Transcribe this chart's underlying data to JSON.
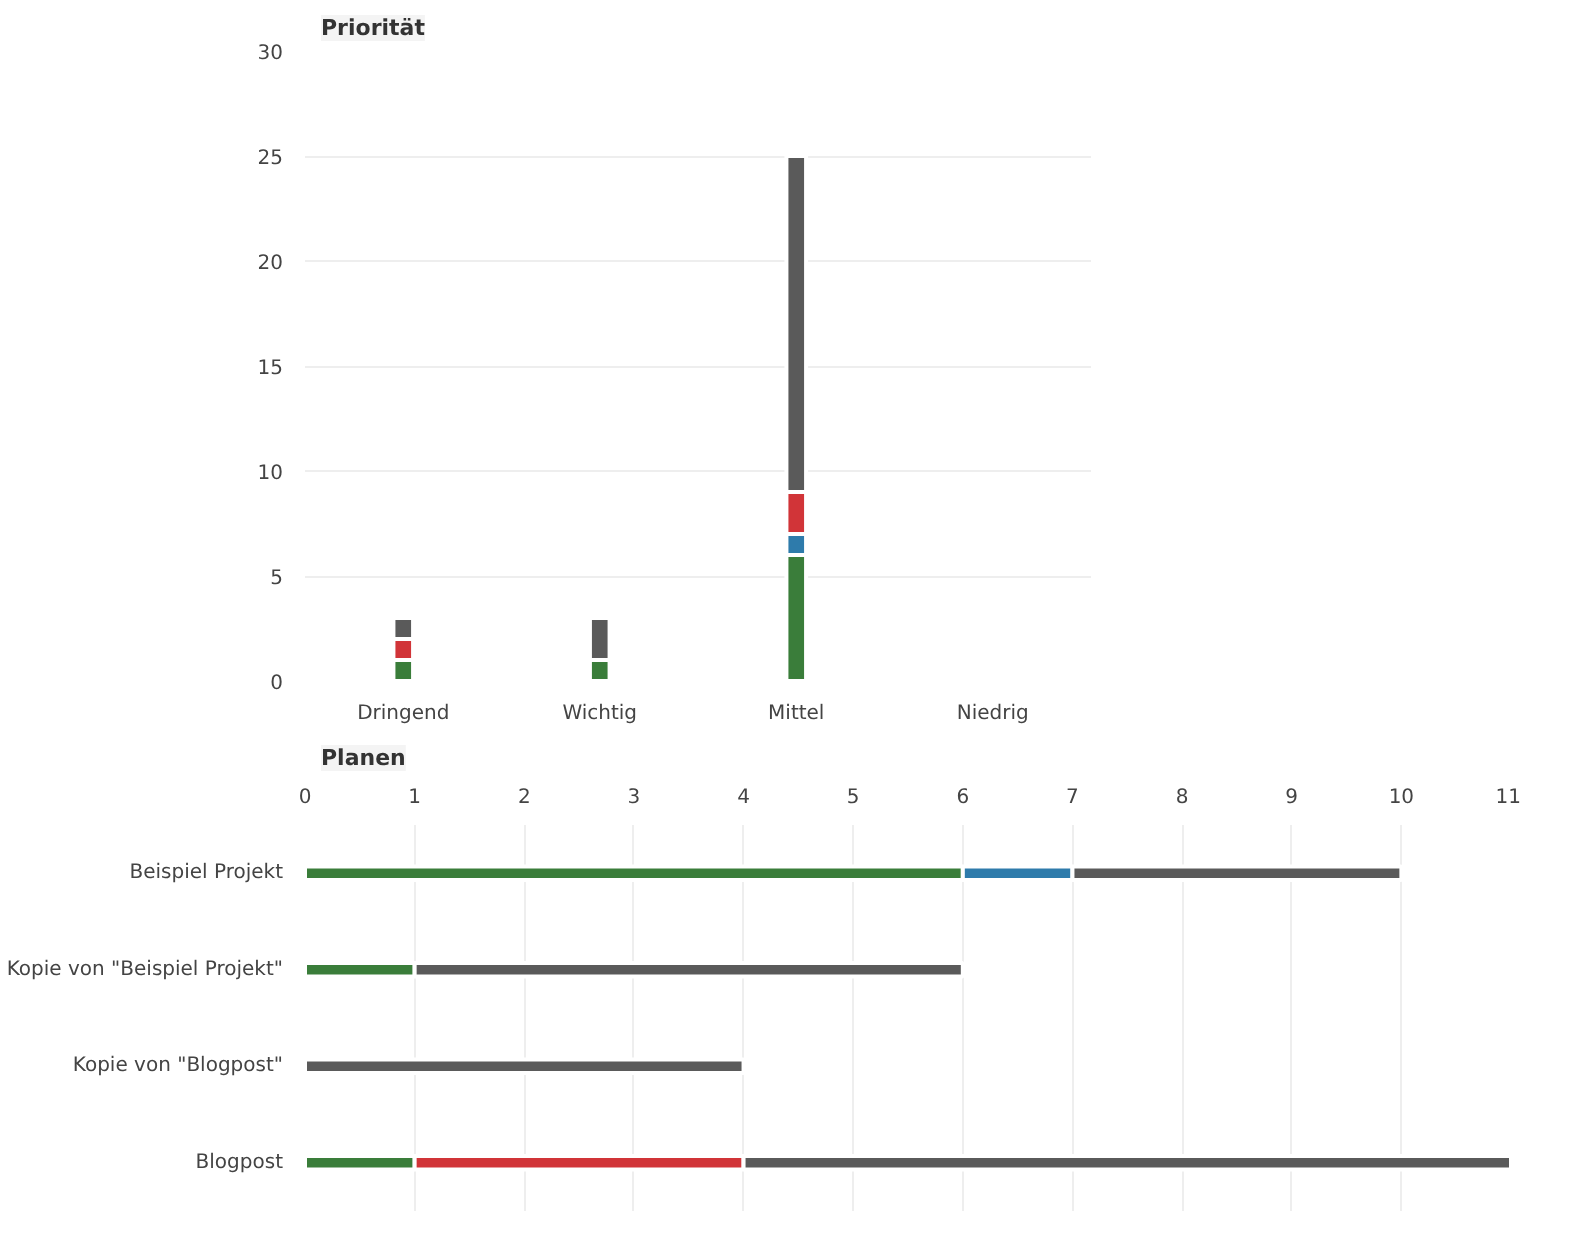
{
  "chart_data": [
    {
      "type": "bar",
      "title": "Priorität",
      "stacked": true,
      "categories": [
        "Dringend",
        "Wichtig",
        "Mittel",
        "Niedrig"
      ],
      "ylim": [
        0,
        30
      ],
      "yticks": [
        0,
        5,
        10,
        15,
        20,
        25,
        30
      ],
      "grid": "y",
      "series": [
        {
          "color": "#3a7d3a",
          "values": [
            1,
            1,
            6,
            0
          ]
        },
        {
          "color": "#2e7bab",
          "values": [
            0,
            0,
            1,
            0
          ]
        },
        {
          "color": "#d13438",
          "values": [
            1,
            0,
            2,
            0
          ]
        },
        {
          "color": "#5a5a5a",
          "values": [
            1,
            2,
            16,
            0
          ]
        }
      ]
    },
    {
      "type": "bar",
      "title": "Planen",
      "stacked": true,
      "orientation": "horizontal",
      "categories": [
        "Beispiel Projekt",
        "Kopie von \"Beispiel Projekt\"",
        "Kopie von \"Blogpost\"",
        "Blogpost"
      ],
      "xlim": [
        0,
        11
      ],
      "xticks": [
        0,
        1,
        2,
        3,
        4,
        5,
        6,
        7,
        8,
        9,
        10,
        11
      ],
      "grid": "x",
      "series": [
        {
          "color": "#3a7d3a",
          "values": [
            6,
            1,
            0,
            1
          ]
        },
        {
          "color": "#2e7bab",
          "values": [
            1,
            0,
            0,
            0
          ]
        },
        {
          "color": "#d13438",
          "values": [
            0,
            0,
            0,
            3
          ]
        },
        {
          "color": "#5a5a5a",
          "values": [
            3,
            5,
            4,
            7
          ]
        }
      ]
    }
  ]
}
